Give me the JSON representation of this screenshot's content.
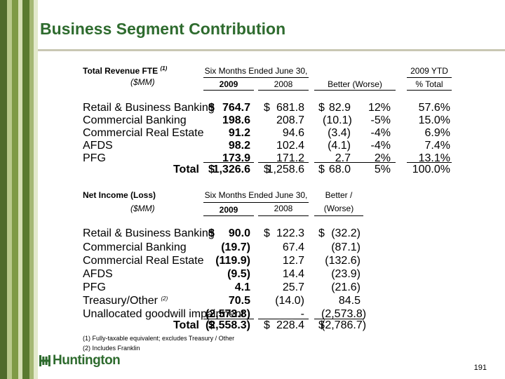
{
  "title": "Business Segment Contribution",
  "revenue": {
    "heading": "Total Revenue FTE",
    "heading_note": "(1)",
    "units": "($MM)",
    "period_header": "Six Months Ended June 30,",
    "ytd_header": "2009 YTD",
    "col_2009": "2009",
    "col_2008": "2008",
    "col_better": "Better (Worse)",
    "col_pct_total": "% Total",
    "rows": [
      {
        "label": "Retail & Business Banking",
        "d1": "$",
        "v2009": "764.7",
        "d2": "$",
        "v2008": "681.8",
        "d3": "$",
        "chg": "82.9",
        "pct": "12%",
        "total": "57.6%"
      },
      {
        "label": "Commercial Banking",
        "d1": "",
        "v2009": "198.6",
        "d2": "",
        "v2008": "208.7",
        "d3": "",
        "chg": "(10.1)",
        "pct": "-5%",
        "total": "15.0%"
      },
      {
        "label": "Commercial Real Estate",
        "d1": "",
        "v2009": "91.2",
        "d2": "",
        "v2008": "94.6",
        "d3": "",
        "chg": "(3.4)",
        "pct": "-4%",
        "total": "6.9%"
      },
      {
        "label": "AFDS",
        "d1": "",
        "v2009": "98.2",
        "d2": "",
        "v2008": "102.4",
        "d3": "",
        "chg": "(4.1)",
        "pct": "-4%",
        "total": "7.4%"
      },
      {
        "label": "PFG",
        "d1": "",
        "v2009": "173.9",
        "d2": "",
        "v2008": "171.2",
        "d3": "",
        "chg": "2.7",
        "pct": "2%",
        "total": "13.1%"
      }
    ],
    "total_row": {
      "label": "Total",
      "d1": "$",
      "v2009": "1,326.6",
      "d2": "$",
      "v2008": "1,258.6",
      "d3": "$",
      "chg": "68.0",
      "pct": "5%",
      "total": "100.0%"
    }
  },
  "net_income": {
    "heading": "Net Income (Loss)",
    "units": "($MM)",
    "period_header": "Six Months Ended June 30,",
    "better_header_1": "Better /",
    "better_header_2": "(Worse)",
    "col_2009": "2009",
    "col_2008": "2008",
    "rows": [
      {
        "label": "Retail & Business Banking",
        "note": "",
        "d1": "$",
        "v2009": "90.0",
        "d2": "$",
        "v2008": "122.3",
        "d3": "$",
        "chg": "(32.2)"
      },
      {
        "label": "Commercial Banking",
        "note": "",
        "d1": "",
        "v2009": "(19.7)",
        "d2": "",
        "v2008": "67.4",
        "d3": "",
        "chg": "(87.1)"
      },
      {
        "label": "Commercial Real Estate",
        "note": "",
        "d1": "",
        "v2009": "(119.9)",
        "d2": "",
        "v2008": "12.7",
        "d3": "",
        "chg": "(132.6)"
      },
      {
        "label": "AFDS",
        "note": "",
        "d1": "",
        "v2009": "(9.5)",
        "d2": "",
        "v2008": "14.4",
        "d3": "",
        "chg": "(23.9)"
      },
      {
        "label": "PFG",
        "note": "",
        "d1": "",
        "v2009": "4.1",
        "d2": "",
        "v2008": "25.7",
        "d3": "",
        "chg": "(21.6)"
      },
      {
        "label": "Treasury/Other",
        "note": "(2)",
        "d1": "",
        "v2009": "70.5",
        "d2": "",
        "v2008": "(14.0)",
        "d3": "",
        "chg": "84.5"
      },
      {
        "label": "Unallocated goodwill impairment",
        "note": "",
        "d1": "",
        "v2009": "(2,573.8)",
        "d2": "",
        "v2008": "-",
        "d3": "",
        "chg": "(2,573.8)"
      }
    ],
    "total_row": {
      "label": "Total",
      "d1": "$",
      "v2009": "(2,558.3)",
      "d2": "$",
      "v2008": "228.4",
      "d3": "$",
      "chg": "(2,786.7)"
    }
  },
  "footnotes": [
    "(1) Fully-taxable equivalent; excludes Treasury / Other",
    "(2) Includes Franklin"
  ],
  "logo_text": "Huntington",
  "logo_icon": "huntington-logo-mark",
  "page_number": "191",
  "colors": {
    "brand_green": "#2e6b2e",
    "stripe_dark": "#4f6b2b",
    "stripe_mid": "#7e9a46",
    "stripe_light": "#b9c98c",
    "rule": "#c9c7b3"
  }
}
